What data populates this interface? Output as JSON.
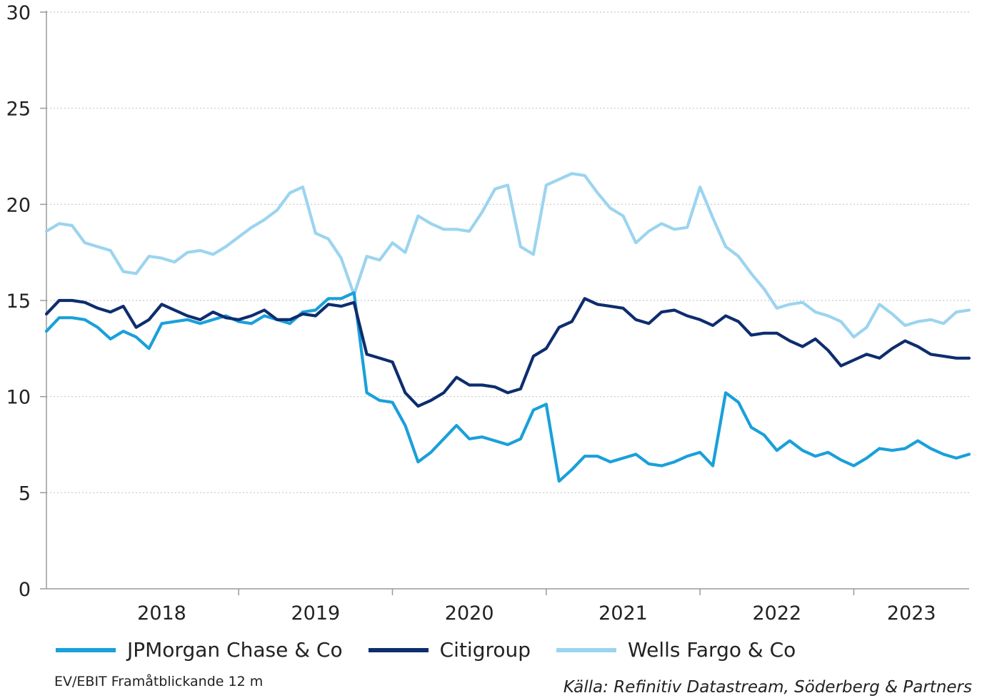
{
  "chart_data": {
    "type": "line",
    "x_range": [
      "2017-10",
      "2023-10"
    ],
    "ylim": [
      0,
      30
    ],
    "yticks": [
      "0",
      "5",
      "10",
      "15",
      "20",
      "25",
      "30"
    ],
    "xtick_labels": [
      "2018",
      "2019",
      "2020",
      "2021",
      "2022",
      "2023"
    ],
    "grid": true,
    "legend_position": "bottom",
    "x": [
      "2017-10",
      "2017-11",
      "2017-12",
      "2018-01",
      "2018-02",
      "2018-03",
      "2018-04",
      "2018-05",
      "2018-06",
      "2018-07",
      "2018-08",
      "2018-09",
      "2018-10",
      "2018-11",
      "2018-12",
      "2019-01",
      "2019-02",
      "2019-03",
      "2019-04",
      "2019-05",
      "2019-06",
      "2019-07",
      "2019-08",
      "2019-09",
      "2019-10",
      "2019-11",
      "2019-12",
      "2020-01",
      "2020-02",
      "2020-03",
      "2020-04",
      "2020-05",
      "2020-06",
      "2020-07",
      "2020-08",
      "2020-09",
      "2020-10",
      "2020-11",
      "2020-12",
      "2021-01",
      "2021-02",
      "2021-03",
      "2021-04",
      "2021-05",
      "2021-06",
      "2021-07",
      "2021-08",
      "2021-09",
      "2021-10",
      "2021-11",
      "2021-12",
      "2022-01",
      "2022-02",
      "2022-03",
      "2022-04",
      "2022-05",
      "2022-06",
      "2022-07",
      "2022-08",
      "2022-09",
      "2022-10",
      "2022-11",
      "2022-12",
      "2023-01",
      "2023-02",
      "2023-03",
      "2023-04",
      "2023-05",
      "2023-06",
      "2023-07",
      "2023-08",
      "2023-09",
      "2023-10"
    ],
    "series": [
      {
        "name": "JPMorgan Chase & Co",
        "color": "#1aa0da",
        "values": [
          13.4,
          14.1,
          14.1,
          14.0,
          13.6,
          13.0,
          13.4,
          13.1,
          12.5,
          13.8,
          13.9,
          14.0,
          13.8,
          14.0,
          14.2,
          13.9,
          13.8,
          14.2,
          14.0,
          13.8,
          14.4,
          14.5,
          15.1,
          15.1,
          15.4,
          10.2,
          9.8,
          9.7,
          8.5,
          6.6,
          7.1,
          7.8,
          8.5,
          7.8,
          7.9,
          7.7,
          7.5,
          7.8,
          9.3,
          9.6,
          5.6,
          6.2,
          6.9,
          6.9,
          6.6,
          6.8,
          7.0,
          6.5,
          6.4,
          6.6,
          6.9,
          7.1,
          6.4,
          10.2,
          9.7,
          8.4,
          8.0,
          7.2,
          7.7,
          7.2,
          6.9,
          7.1,
          6.7,
          6.4,
          6.8,
          7.3,
          7.2,
          7.3,
          7.7,
          7.3,
          7.0,
          6.8,
          7.0
        ]
      },
      {
        "name": "Citigroup",
        "color": "#0d2d6e",
        "values": [
          14.3,
          15.0,
          15.0,
          14.9,
          14.6,
          14.4,
          14.7,
          13.6,
          14.0,
          14.8,
          14.5,
          14.2,
          14.0,
          14.4,
          14.1,
          14.0,
          14.2,
          14.5,
          14.0,
          14.0,
          14.3,
          14.2,
          14.8,
          14.7,
          14.9,
          12.2,
          12.0,
          11.8,
          10.2,
          9.5,
          9.8,
          10.2,
          11.0,
          10.6,
          10.6,
          10.5,
          10.2,
          10.4,
          12.1,
          12.5,
          13.6,
          13.9,
          15.1,
          14.8,
          14.7,
          14.6,
          14.0,
          13.8,
          14.4,
          14.5,
          14.2,
          14.0,
          13.7,
          14.2,
          13.9,
          13.2,
          13.3,
          13.3,
          12.9,
          12.6,
          13.0,
          12.4,
          11.6,
          11.9,
          12.2,
          12.0,
          12.5,
          12.9,
          12.6,
          12.2,
          12.1,
          12.0,
          12.0
        ]
      },
      {
        "name": "Wells Fargo & Co",
        "color": "#9bd4ef",
        "values": [
          18.6,
          19.0,
          18.9,
          18.0,
          17.8,
          17.6,
          16.5,
          16.4,
          17.3,
          17.2,
          17.0,
          17.5,
          17.6,
          17.4,
          17.8,
          18.3,
          18.8,
          19.2,
          19.7,
          20.6,
          20.9,
          18.5,
          18.2,
          17.2,
          15.3,
          17.3,
          17.1,
          18.0,
          17.5,
          19.4,
          19.0,
          18.7,
          18.7,
          18.6,
          19.6,
          20.8,
          21.0,
          17.8,
          17.4,
          21.0,
          21.3,
          21.6,
          21.5,
          20.6,
          19.8,
          19.4,
          18.0,
          18.6,
          19.0,
          18.7,
          18.8,
          20.9,
          19.3,
          17.8,
          17.3,
          16.4,
          15.6,
          14.6,
          14.8,
          14.9,
          14.4,
          14.2,
          13.9,
          13.1,
          13.6,
          14.8,
          14.3,
          13.7,
          13.9,
          14.0,
          13.8,
          14.4,
          14.5
        ]
      }
    ]
  },
  "legend": [
    {
      "label": "JPMorgan Chase & Co",
      "color": "#1aa0da"
    },
    {
      "label": "Citigroup",
      "color": "#0d2d6e"
    },
    {
      "label": "Wells Fargo & Co",
      "color": "#9bd4ef"
    }
  ],
  "footnote": "EV/EBIT Framåtblickande 12 m",
  "source": "Källa: Refinitiv Datastream, Söderberg & Partners"
}
